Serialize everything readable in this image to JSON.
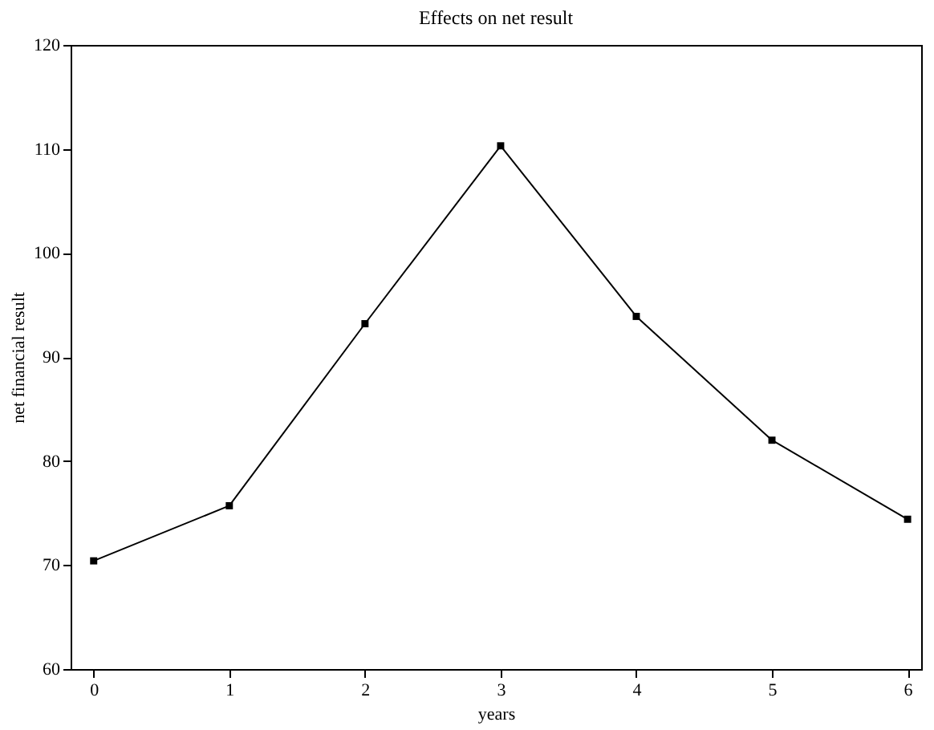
{
  "chart_data": {
    "type": "line",
    "title": "Effects on net result",
    "xlabel": "years",
    "ylabel": "net financial result",
    "x": [
      0,
      1,
      2,
      3,
      4,
      5,
      6
    ],
    "series": [
      {
        "color": "#000000",
        "values": [
          70.4,
          75.7,
          93.2,
          110.3,
          93.9,
          82.0,
          74.4
        ]
      }
    ],
    "xlim": [
      -0.17,
      6.1
    ],
    "xticks": [
      0,
      1,
      2,
      3,
      4,
      5,
      6
    ],
    "ylim": [
      60,
      120
    ],
    "yticks": [
      60,
      70,
      80,
      90,
      100,
      110,
      120
    ],
    "marker": "square",
    "line_style": "solid"
  }
}
